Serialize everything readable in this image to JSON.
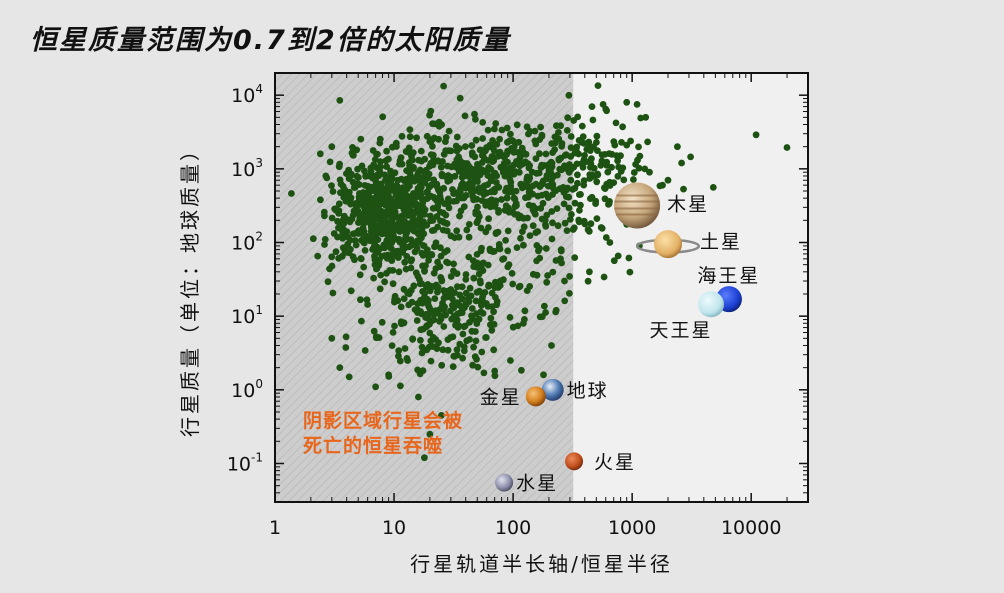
{
  "title": "恒星质量范围为0.7到2倍的太阳质量",
  "chart_data": {
    "type": "scatter",
    "xlabel": "行星轨道半长轴/恒星半径",
    "ylabel": "行星质量（单位：地球质量）",
    "x_scale": "log",
    "y_scale": "log",
    "xlim": [
      1,
      30000
    ],
    "ylim": [
      0.03,
      20000
    ],
    "x_ticks": [
      {
        "value": 1,
        "label": "1"
      },
      {
        "value": 10,
        "label": "10"
      },
      {
        "value": 100,
        "label": "100"
      },
      {
        "value": 1000,
        "label": "1000"
      },
      {
        "value": 10000,
        "label": "10000"
      }
    ],
    "y_ticks": [
      {
        "value": 0.1,
        "base": "10",
        "exp": "-1"
      },
      {
        "value": 1,
        "base": "10",
        "exp": "0"
      },
      {
        "value": 10,
        "base": "10",
        "exp": "1"
      },
      {
        "value": 100,
        "base": "10",
        "exp": "2"
      },
      {
        "value": 1000,
        "base": "10",
        "exp": "3"
      },
      {
        "value": 10000,
        "base": "10",
        "exp": "4"
      }
    ],
    "shaded_region": {
      "x_from": 1,
      "x_to": 320,
      "label_lines": [
        "阴影区域行星会被",
        "死亡的恒星吞噬"
      ]
    },
    "exoplanet_color": "#1d5212",
    "exoplanet_clusters": [
      {
        "x": 8,
        "y": 250,
        "sx": 0.22,
        "sy": 0.38,
        "n": 600
      },
      {
        "x": 25,
        "y": 12,
        "sx": 0.3,
        "sy": 0.45,
        "n": 260
      },
      {
        "x": 120,
        "y": 800,
        "sx": 0.42,
        "sy": 0.35,
        "n": 320
      },
      {
        "x": 30,
        "y": 900,
        "sx": 0.35,
        "sy": 0.35,
        "n": 200
      },
      {
        "x": 500,
        "y": 1200,
        "sx": 0.25,
        "sy": 0.35,
        "n": 90
      },
      {
        "x": 60,
        "y": 100,
        "sx": 0.45,
        "sy": 0.55,
        "n": 150
      }
    ],
    "exoplanet_points": [
      [
        11000,
        2900
      ],
      [
        20000,
        1950
      ],
      [
        4800,
        560
      ],
      [
        2700,
        530
      ],
      [
        3100,
        1450
      ],
      [
        2400,
        2000
      ],
      [
        1300,
        5000
      ],
      [
        1100,
        7500
      ],
      [
        900,
        8000
      ],
      [
        600,
        6500
      ],
      [
        460,
        7000
      ],
      [
        2000,
        700
      ],
      [
        2600,
        1200
      ],
      [
        1400,
        900
      ],
      [
        900,
        2100
      ],
      [
        700,
        650
      ],
      [
        780,
        250
      ],
      [
        550,
        160
      ],
      [
        650,
        100
      ],
      [
        1150,
        90
      ],
      [
        1400,
        340
      ],
      [
        1800,
        600
      ],
      [
        3.5,
        8500
      ],
      [
        3,
        2000
      ],
      [
        2.4,
        1600
      ],
      [
        2.6,
        230
      ],
      [
        3,
        5
      ],
      [
        3.5,
        2
      ],
      [
        4.2,
        1.5
      ],
      [
        7,
        1.1
      ],
      [
        9,
        1.6
      ],
      [
        13,
        2.5
      ],
      [
        16,
        0.8
      ],
      [
        25,
        0.45
      ],
      [
        20,
        0.25
      ],
      [
        18,
        0.12
      ],
      [
        70,
        1.8
      ],
      [
        95,
        2.5
      ],
      [
        180,
        1.6
      ],
      [
        210,
        4
      ],
      [
        230,
        12
      ],
      [
        270,
        30
      ],
      [
        250,
        60
      ],
      [
        320,
        150
      ],
      [
        450,
        180
      ]
    ],
    "planets": [
      {
        "name": "木星",
        "x": 1100,
        "y": 318,
        "color": "#c4a57a",
        "type": "jupiter"
      },
      {
        "name": "土星",
        "x": 2000,
        "y": 95,
        "color": "#e3b065",
        "type": "saturn"
      },
      {
        "name": "海王星",
        "x": 6500,
        "y": 17,
        "color": "#1b3fd1",
        "type": "neptune"
      },
      {
        "name": "天王星",
        "x": 4600,
        "y": 14.5,
        "color": "#bfe5ec",
        "type": "uranus"
      },
      {
        "name": "地球",
        "x": 215,
        "y": 1,
        "color": "#5580b8",
        "type": "earth"
      },
      {
        "name": "金星",
        "x": 155,
        "y": 0.815,
        "color": "#d4801d",
        "type": "venus"
      },
      {
        "name": "火星",
        "x": 325,
        "y": 0.107,
        "color": "#c04e1c",
        "type": "mars"
      },
      {
        "name": "水星",
        "x": 84,
        "y": 0.055,
        "color": "#8a8ca8",
        "type": "mercury"
      }
    ]
  }
}
